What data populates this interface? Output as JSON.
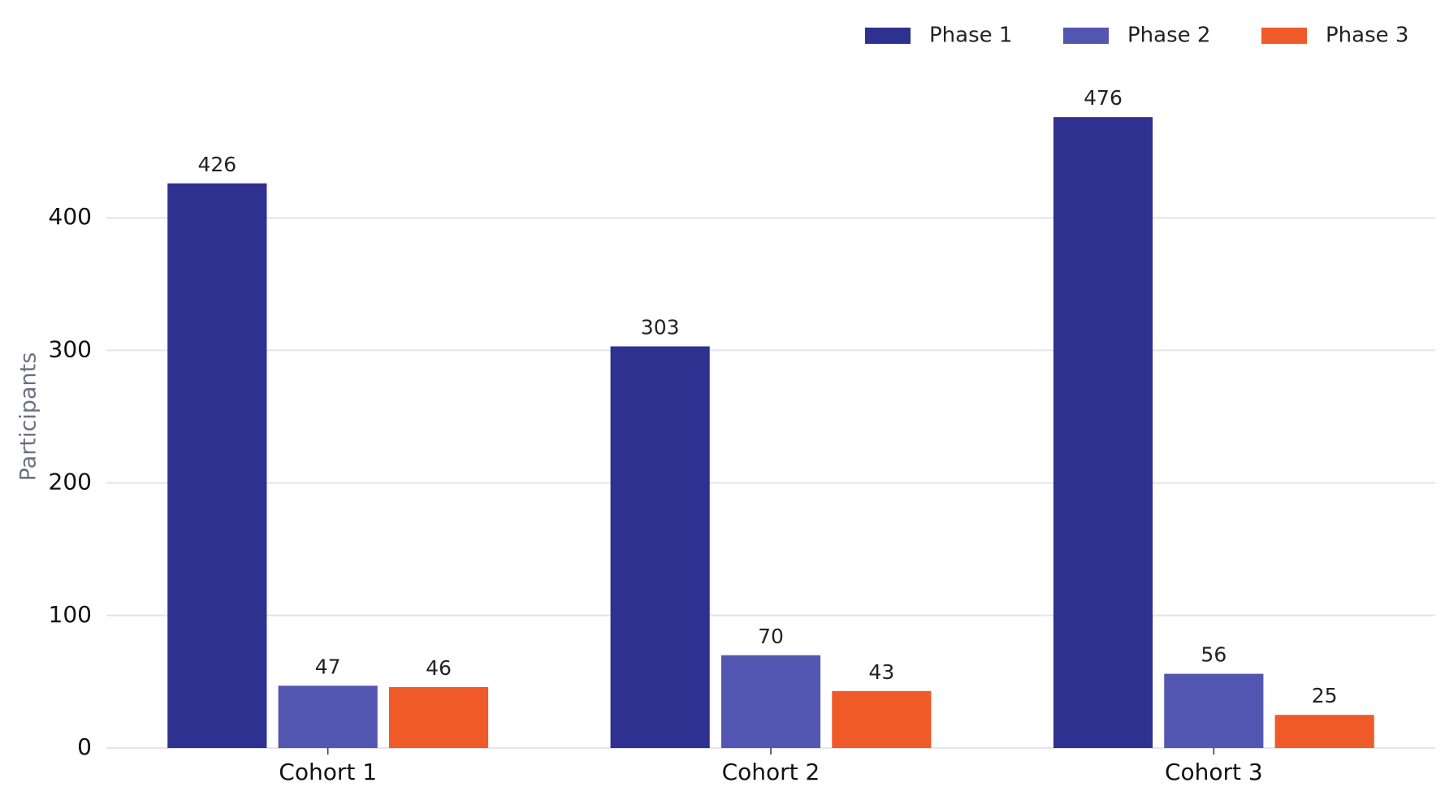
{
  "chart_data": {
    "type": "bar",
    "y_label": "Participants",
    "categories": [
      "Cohort 1",
      "Cohort 2",
      "Cohort 3"
    ],
    "series": [
      {
        "name": "Phase 1",
        "color": "#2e3190",
        "values": [
          426,
          303,
          476
        ]
      },
      {
        "name": "Phase 2",
        "color": "#5356b0",
        "values": [
          47,
          70,
          56
        ]
      },
      {
        "name": "Phase 3",
        "color": "#f05a28",
        "values": [
          46,
          43,
          25
        ]
      }
    ],
    "ylim": [
      0,
      500
    ],
    "yticks": [
      0,
      100,
      200,
      300,
      400
    ],
    "grid": true,
    "legend": "upper right"
  }
}
